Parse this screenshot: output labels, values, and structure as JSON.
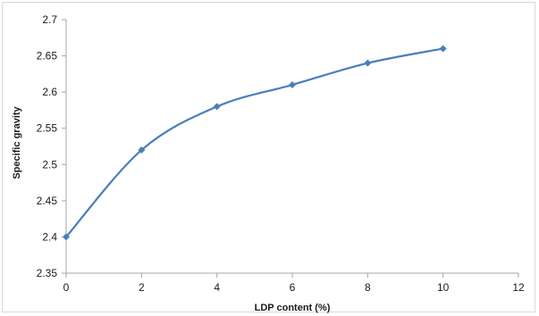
{
  "chart_data": {
    "type": "line",
    "xlabel": "LDP content (%)",
    "ylabel": "Specific gravity",
    "xlim": [
      0,
      12
    ],
    "ylim": [
      2.35,
      2.7
    ],
    "x_ticks": [
      "0",
      "2",
      "4",
      "6",
      "8",
      "10",
      "12"
    ],
    "y_ticks": [
      "2.35",
      "2.4",
      "2.45",
      "2.5",
      "2.55",
      "2.6",
      "2.65",
      "2.7"
    ],
    "grid": false,
    "smooth": true,
    "colors": {
      "series": "#4a7ebb",
      "axis": "#a6a6a6"
    },
    "series": [
      {
        "x": [
          0,
          2,
          4,
          6,
          8,
          10
        ],
        "y": [
          2.4,
          2.52,
          2.58,
          2.61,
          2.64,
          2.66
        ]
      }
    ]
  }
}
